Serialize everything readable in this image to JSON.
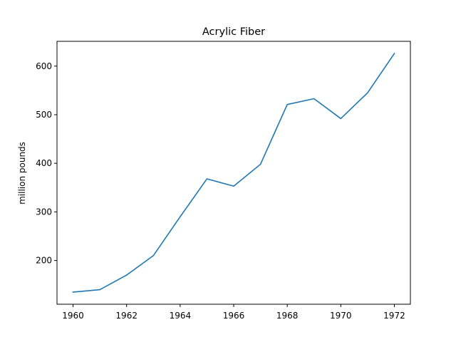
{
  "chart_data": {
    "type": "line",
    "title": "Acrylic Fiber",
    "xlabel": "",
    "ylabel": "million pounds",
    "x": [
      1960,
      1961,
      1962,
      1963,
      1964,
      1965,
      1966,
      1967,
      1968,
      1969,
      1970,
      1971,
      1972
    ],
    "series": [
      {
        "values": [
          135,
          140,
          170,
          210,
          290,
          368,
          353,
          398,
          521,
          533,
          492,
          545,
          626
        ],
        "color": "#1f77b4"
      }
    ],
    "xlim": [
      1959.4,
      1972.6
    ],
    "ylim": [
      110,
      651
    ],
    "xticks": [
      1960,
      1962,
      1964,
      1966,
      1968,
      1970,
      1972
    ],
    "yticks": [
      200,
      300,
      400,
      500,
      600
    ],
    "grid": false,
    "legend": "none"
  }
}
